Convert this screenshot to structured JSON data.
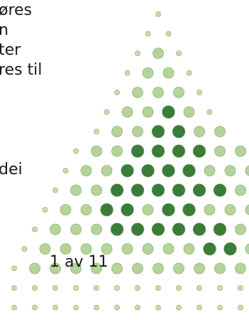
{
  "slide": {
    "text_lines": [
      "øres",
      "n",
      "ter",
      "res til",
      "dei"
    ],
    "page_indicator": "1 av 11"
  },
  "dot_pattern": {
    "color_scheme": {
      "small": "#c9dcae",
      "medium": "#b6d49a",
      "dark": "#3a7d3a",
      "outline": "#8fb476"
    },
    "rows": [
      "s",
      "ss",
      "sms",
      "smms",
      "smmms",
      "smmdms",
      "smmddmm",
      "smmddddmm",
      "smmddddmmm",
      "smmddddddmm",
      "smmddmddmmms",
      "smmmddddddmms",
      "smmmmmmmmddmms",
      "smmmmmmmmmmmmms",
      "sssssssssssssss",
      "sssssssssssssss"
    ]
  }
}
